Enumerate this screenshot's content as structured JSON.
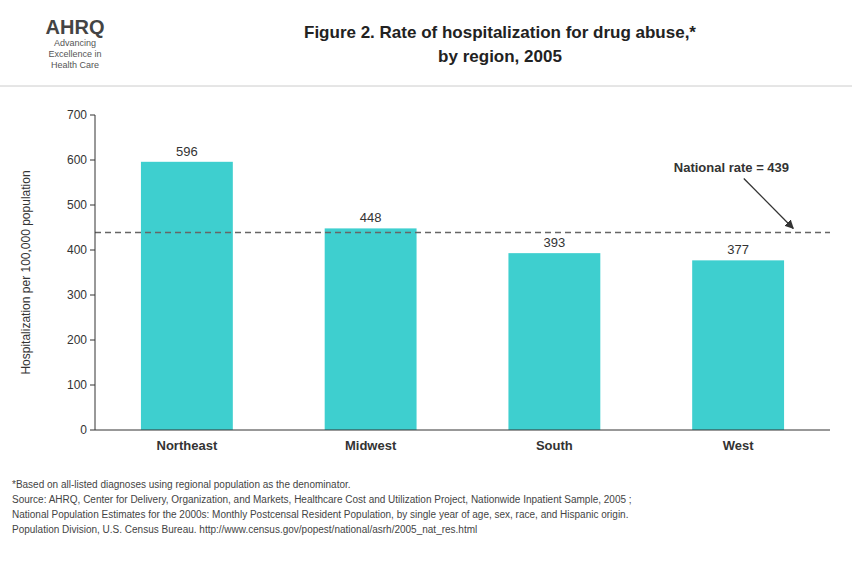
{
  "chart_data": {
    "type": "bar",
    "title": "Figure 2. Rate of hospitalization for drug abuse,*",
    "subtitle": "by region, 2005",
    "categories": [
      "Northeast",
      "Midwest",
      "South",
      "West"
    ],
    "values": [
      596,
      448,
      393,
      377
    ],
    "color": "#3ECFCF",
    "ylabel": "Hospitalization per 100,000 population",
    "ylim": [
      0,
      700
    ],
    "yticks": [
      0,
      100,
      200,
      300,
      400,
      500,
      600,
      700
    ],
    "grid": false,
    "data_labels": true,
    "reference_line": {
      "value": 439,
      "label": "National rate = 439",
      "color": "#666666",
      "line_style": "dashed"
    },
    "logo_text": [
      "AHRQ",
      "Advancing",
      "Excellence in",
      "Health Care"
    ],
    "notes": [
      "*Based on all-listed diagnoses using regional population as the denominator.",
      "Source: AHRQ, Center for Delivery, Organization, and Markets, Healthcare Cost and Utilization Project, Nationwide Inpatient Sample, 2005 ;",
      "National Population Estimates for the 2000s: Monthly Postcensal Resident Population, by single year of age, sex, race, and Hispanic origin.",
      "Population Division, U.S. Census Bureau.  http://www.census.gov/popest/national/asrh/2005_nat_res.html"
    ]
  }
}
